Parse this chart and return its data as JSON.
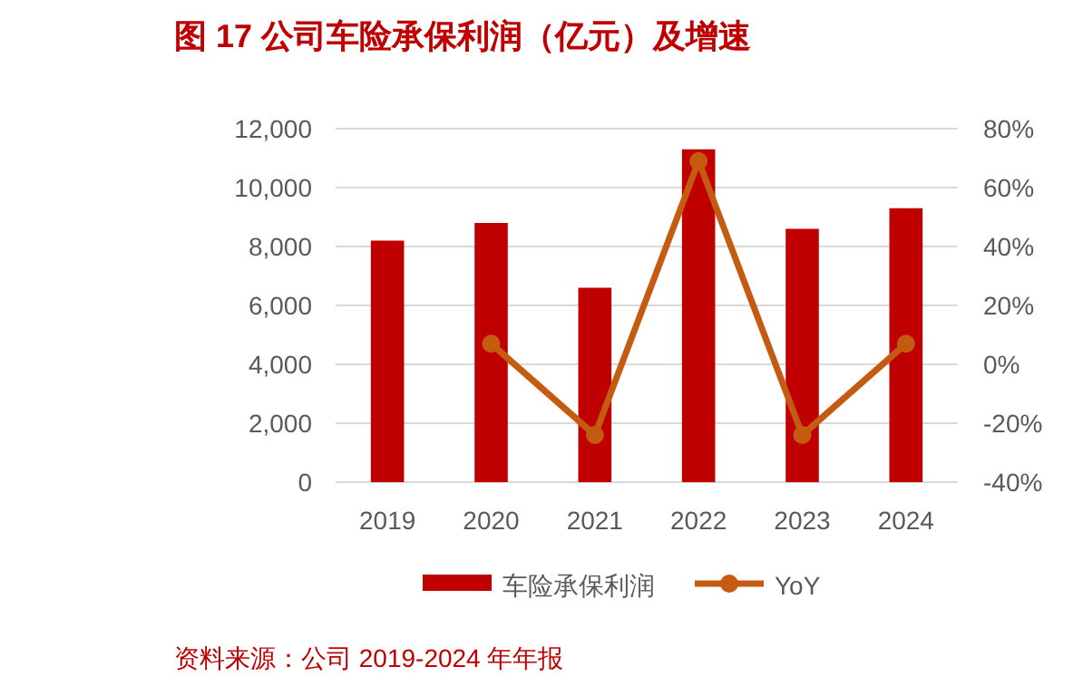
{
  "chart_data": {
    "type": "bar",
    "title": "图 17 公司车险承保利润（亿元）及增速",
    "categories": [
      "2019",
      "2020",
      "2021",
      "2022",
      "2023",
      "2024"
    ],
    "series": [
      {
        "name": "车险承保利润",
        "color": "#c00000",
        "values": [
          8200,
          8800,
          6600,
          11300,
          8600,
          9300
        ]
      },
      {
        "name": "YoY",
        "type": "line",
        "axis": "y2",
        "color": "#c55a11",
        "marker": "circle",
        "values": [
          null,
          7,
          -24,
          69,
          -24,
          7
        ]
      }
    ],
    "ylim": [
      0,
      12000
    ],
    "yticks": [
      {
        "value": 0,
        "label": "0"
      },
      {
        "value": 2000,
        "label": "2,000"
      },
      {
        "value": 4000,
        "label": "4,000"
      },
      {
        "value": 6000,
        "label": "6,000"
      },
      {
        "value": 8000,
        "label": "8,000"
      },
      {
        "value": 10000,
        "label": "10,000"
      },
      {
        "value": 12000,
        "label": "12,000"
      }
    ],
    "y2lim": [
      -40,
      80
    ],
    "y2ticks": [
      {
        "value": -40,
        "label": "-40%"
      },
      {
        "value": -20,
        "label": "-20%"
      },
      {
        "value": 0,
        "label": "0%"
      },
      {
        "value": 20,
        "label": "20%"
      },
      {
        "value": 40,
        "label": "40%"
      },
      {
        "value": 60,
        "label": "60%"
      },
      {
        "value": 80,
        "label": "80%"
      }
    ],
    "grid": "y",
    "legend": "bottom",
    "annotations": [
      "资料来源：公司 2019-2024 年年报"
    ]
  }
}
